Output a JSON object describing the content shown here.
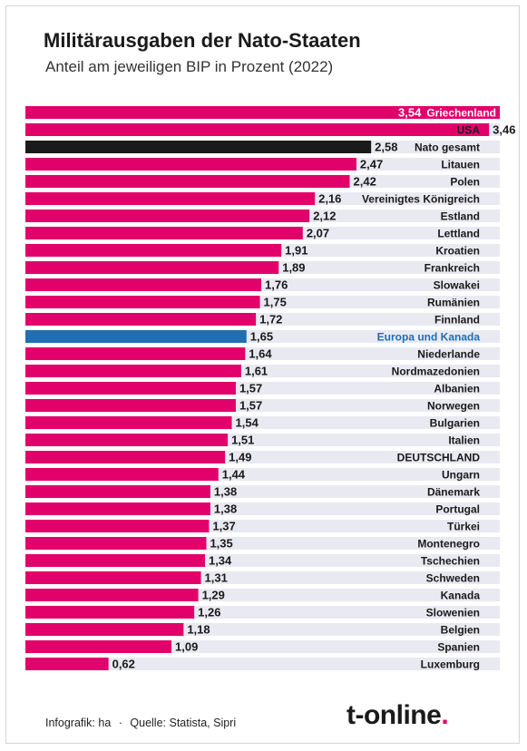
{
  "title": "Militärausgaben der Nato-Staaten",
  "subtitle": "Anteil am jeweiligen BIP in Prozent (2022)",
  "footer": {
    "credit": "Infografik: ha",
    "separator": "·",
    "source": "Quelle: Statista, Sipri"
  },
  "logo": {
    "text": "t-online",
    "dot": "."
  },
  "colors": {
    "country": "#e2006a",
    "nato_total": "#1a1a1a",
    "europe_canada": "#1f6fb2",
    "europe_canada_label": "#1f6fb2",
    "row_background": "#e9e9f2"
  },
  "chart_data": {
    "type": "bar",
    "orientation": "horizontal",
    "categories": [
      "Griechenland",
      "USA",
      "Nato gesamt",
      "Litauen",
      "Polen",
      "Vereinigtes Königreich",
      "Estland",
      "Lettland",
      "Kroatien",
      "Frankreich",
      "Slowakei",
      "Rumänien",
      "Finnland",
      "Europa und Kanada",
      "Niederlande",
      "Nordmazedonien",
      "Albanien",
      "Norwegen",
      "Bulgarien",
      "Italien",
      "DEUTSCHLAND",
      "Ungarn",
      "Dänemark",
      "Portugal",
      "Türkei",
      "Montenegro",
      "Tschechien",
      "Schweden",
      "Kanada",
      "Slowenien",
      "Belgien",
      "Spanien",
      "Luxemburg"
    ],
    "values": [
      3.54,
      3.46,
      2.58,
      2.47,
      2.42,
      2.16,
      2.12,
      2.07,
      1.91,
      1.89,
      1.76,
      1.75,
      1.72,
      1.65,
      1.64,
      1.61,
      1.57,
      1.57,
      1.54,
      1.51,
      1.49,
      1.44,
      1.38,
      1.38,
      1.37,
      1.35,
      1.34,
      1.31,
      1.29,
      1.26,
      1.18,
      1.09,
      0.62
    ],
    "value_labels": [
      "3,54",
      "3,46",
      "2,58",
      "2,47",
      "2,42",
      "2,16",
      "2,12",
      "2,07",
      "1,91",
      "1,89",
      "1,76",
      "1,75",
      "1,72",
      "1,65",
      "1,64",
      "1,61",
      "1,57",
      "1,57",
      "1,54",
      "1,51",
      "1,49",
      "1,44",
      "1,38",
      "1,38",
      "1,37",
      "1,35",
      "1,34",
      "1,31",
      "1,29",
      "1,26",
      "1,18",
      "1,09",
      "0,62"
    ],
    "kinds": [
      "country",
      "country",
      "nato_total",
      "country",
      "country",
      "country",
      "country",
      "country",
      "country",
      "country",
      "country",
      "country",
      "country",
      "europe_canada",
      "country",
      "country",
      "country",
      "country",
      "country",
      "country",
      "country",
      "country",
      "country",
      "country",
      "country",
      "country",
      "country",
      "country",
      "country",
      "country",
      "country",
      "country",
      "country"
    ],
    "xlim": [
      0,
      3.54
    ],
    "grid": false,
    "legend": "none",
    "title": "Militärausgaben der Nato-Staaten",
    "subtitle": "Anteil am jeweiligen BIP in Prozent (2022)"
  }
}
